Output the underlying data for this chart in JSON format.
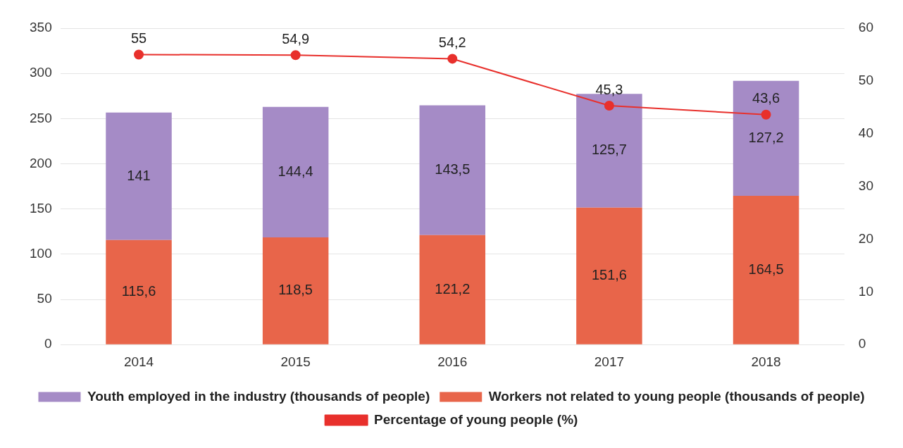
{
  "chart_data": {
    "type": "bar",
    "stacked": true,
    "categories": [
      "2014",
      "2015",
      "2016",
      "2017",
      "2018"
    ],
    "series": [
      {
        "name": "Workers not related to young people (thousands of people)",
        "color": "#e8654a",
        "values": [
          115.6,
          118.5,
          121.2,
          151.6,
          164.5
        ],
        "value_labels": [
          "115,6",
          "118,5",
          "121,2",
          "151,6",
          "164,5"
        ]
      },
      {
        "name": "Youth employed in the industry (thousands of people)",
        "color": "#a58bc6",
        "values": [
          141,
          144.4,
          143.5,
          125.7,
          127.2
        ],
        "value_labels": [
          "141",
          "144,4",
          "143,5",
          "125,7",
          "127,2"
        ]
      },
      {
        "name": "Percentage of young people (%)",
        "type": "line",
        "axis": "y2",
        "color": "#e8302c",
        "values": [
          55,
          54.9,
          54.2,
          45.3,
          43.6
        ],
        "value_labels": [
          "55",
          "54,9",
          "54,2",
          "45,3",
          "43,6"
        ]
      }
    ],
    "ylim": [
      0,
      350
    ],
    "yticks": [
      0,
      50,
      100,
      150,
      200,
      250,
      300,
      350
    ],
    "y2lim": [
      0,
      60
    ],
    "y2ticks": [
      0,
      10,
      20,
      30,
      40,
      50,
      60
    ],
    "grid": "y",
    "legend": "bottom",
    "marker": "circle",
    "line_style": "solid"
  }
}
